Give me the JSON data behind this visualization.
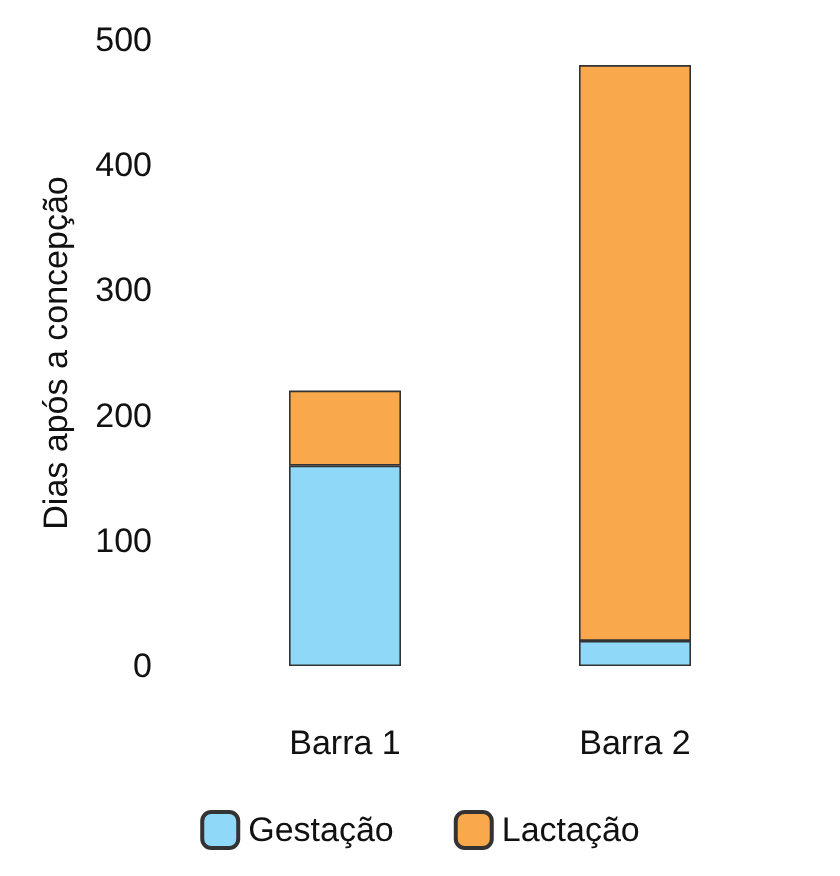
{
  "chart_data": {
    "type": "bar",
    "stacked": true,
    "ylabel": "Dias após a concepção",
    "categories": [
      "Barra 1",
      "Barra 2"
    ],
    "series": [
      {
        "name": "Gestação",
        "color": "#8fd8f8",
        "values": [
          160,
          20
        ]
      },
      {
        "name": "Lactação",
        "color": "#f9a94b",
        "values": [
          60,
          460
        ]
      }
    ],
    "ylim": [
      0,
      500
    ],
    "yticks": [
      0,
      100,
      200,
      300,
      400,
      500
    ],
    "grid": false,
    "legend": "bottom"
  }
}
